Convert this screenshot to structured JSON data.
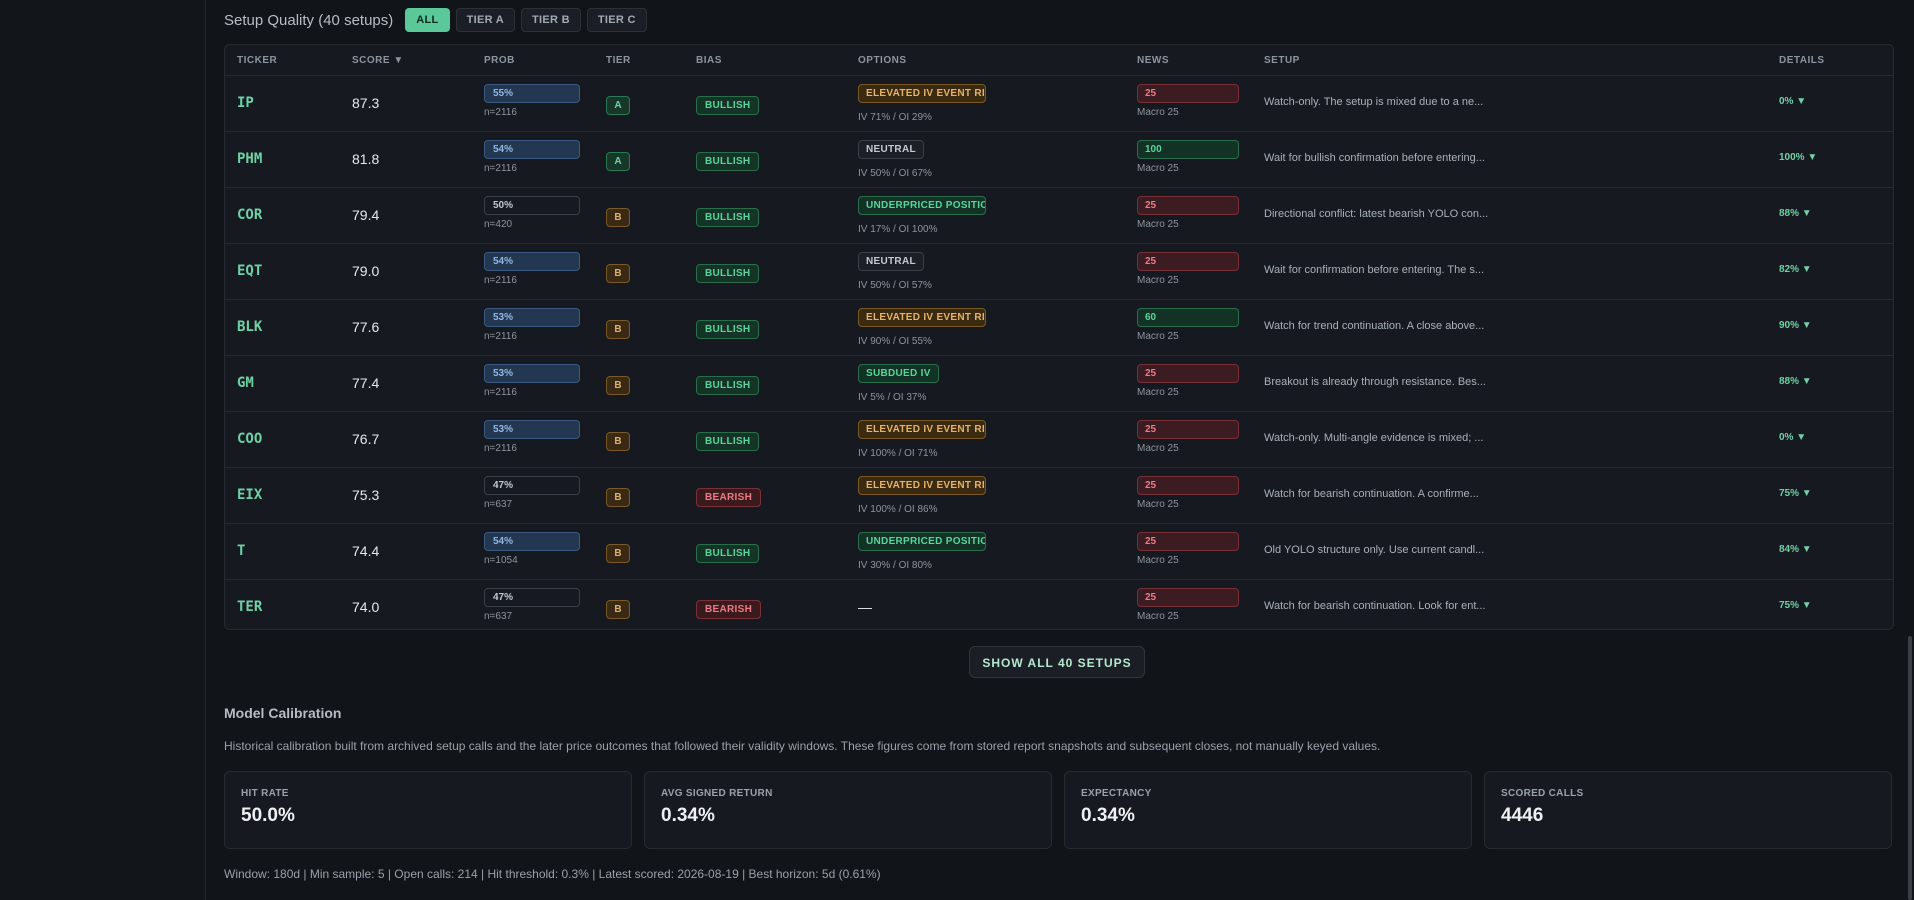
{
  "quality": {
    "title": "Setup Quality (40 setups)",
    "filters": [
      {
        "label": "ALL",
        "active": true
      },
      {
        "label": "TIER A",
        "active": false
      },
      {
        "label": "TIER B",
        "active": false
      },
      {
        "label": "TIER C",
        "active": false
      }
    ]
  },
  "table": {
    "headers": [
      "TICKER",
      "SCORE ▼",
      "PROB",
      "TIER",
      "BIAS",
      "OPTIONS",
      "NEWS",
      "SETUP",
      "DETAILS"
    ],
    "rows": [
      {
        "ticker": "IP",
        "score": "87.3",
        "prob": "55%",
        "prob_hl": true,
        "n": "n=2116",
        "tier": "A",
        "bias": "BULLISH",
        "bias_type": "bull",
        "opt_badge": "ELEVATED IV EVENT RISK",
        "opt_type": "elev",
        "opt_sub": "IV 71% / OI 29%",
        "news": "25",
        "news_type": "red",
        "news_sub": "Macro 25",
        "setup": "Watch-only. The setup is mixed due to a ne...",
        "details": "0% ▼"
      },
      {
        "ticker": "PHM",
        "score": "81.8",
        "prob": "54%",
        "prob_hl": true,
        "n": "n=2116",
        "tier": "A",
        "bias": "BULLISH",
        "bias_type": "bull",
        "opt_badge": "NEUTRAL",
        "opt_type": "neutral",
        "opt_sub": "IV 50% / OI 67%",
        "news": "100",
        "news_type": "green",
        "news_sub": "Macro 25",
        "setup": "Wait for bullish confirmation before entering...",
        "details": "100% ▼"
      },
      {
        "ticker": "COR",
        "score": "79.4",
        "prob": "50%",
        "prob_hl": false,
        "n": "n=420",
        "tier": "B",
        "bias": "BULLISH",
        "bias_type": "bull",
        "opt_badge": "UNDERPRICED POSITIONING",
        "opt_type": "under",
        "opt_sub": "IV 17% / OI 100%",
        "news": "25",
        "news_type": "red",
        "news_sub": "Macro 25",
        "setup": "Directional conflict: latest bearish YOLO con...",
        "details": "88% ▼"
      },
      {
        "ticker": "EQT",
        "score": "79.0",
        "prob": "54%",
        "prob_hl": true,
        "n": "n=2116",
        "tier": "B",
        "bias": "BULLISH",
        "bias_type": "bull",
        "opt_badge": "NEUTRAL",
        "opt_type": "neutral",
        "opt_sub": "IV 50% / OI 57%",
        "news": "25",
        "news_type": "red",
        "news_sub": "Macro 25",
        "setup": "Wait for confirmation before entering. The s...",
        "details": "82% ▼"
      },
      {
        "ticker": "BLK",
        "score": "77.6",
        "prob": "53%",
        "prob_hl": true,
        "n": "n=2116",
        "tier": "B",
        "bias": "BULLISH",
        "bias_type": "bull",
        "opt_badge": "ELEVATED IV EVENT RISK",
        "opt_type": "elev",
        "opt_sub": "IV 90% / OI 55%",
        "news": "60",
        "news_type": "green",
        "news_sub": "Macro 25",
        "setup": "Watch for trend continuation. A close above...",
        "details": "90% ▼"
      },
      {
        "ticker": "GM",
        "score": "77.4",
        "prob": "53%",
        "prob_hl": true,
        "n": "n=2116",
        "tier": "B",
        "bias": "BULLISH",
        "bias_type": "bull",
        "opt_badge": "SUBDUED IV",
        "opt_type": "subdued",
        "opt_sub": "IV 5% / OI 37%",
        "news": "25",
        "news_type": "red",
        "news_sub": "Macro 25",
        "setup": "Breakout is already through resistance. Bes...",
        "details": "88% ▼"
      },
      {
        "ticker": "COO",
        "score": "76.7",
        "prob": "53%",
        "prob_hl": true,
        "n": "n=2116",
        "tier": "B",
        "bias": "BULLISH",
        "bias_type": "bull",
        "opt_badge": "ELEVATED IV EVENT RISK",
        "opt_type": "elev",
        "opt_sub": "IV 100% / OI 71%",
        "news": "25",
        "news_type": "red",
        "news_sub": "Macro 25",
        "setup": "Watch-only. Multi-angle evidence is mixed; ...",
        "details": "0% ▼"
      },
      {
        "ticker": "EIX",
        "score": "75.3",
        "prob": "47%",
        "prob_hl": false,
        "n": "n=637",
        "tier": "B",
        "bias": "BEARISH",
        "bias_type": "bear",
        "opt_badge": "ELEVATED IV EVENT RISK",
        "opt_type": "elev",
        "opt_sub": "IV 100% / OI 86%",
        "news": "25",
        "news_type": "red",
        "news_sub": "Macro 25",
        "setup": "Watch for bearish continuation. A confirme...",
        "details": "75% ▼"
      },
      {
        "ticker": "T",
        "score": "74.4",
        "prob": "54%",
        "prob_hl": true,
        "n": "n=1054",
        "tier": "B",
        "bias": "BULLISH",
        "bias_type": "bull",
        "opt_badge": "UNDERPRICED POSITIONING",
        "opt_type": "under",
        "opt_sub": "IV 30% / OI 80%",
        "news": "25",
        "news_type": "red",
        "news_sub": "Macro 25",
        "setup": "Old YOLO structure only. Use current candl...",
        "details": "84% ▼"
      },
      {
        "ticker": "TER",
        "score": "74.0",
        "prob": "47%",
        "prob_hl": false,
        "n": "n=637",
        "tier": "B",
        "bias": "BEARISH",
        "bias_type": "bear",
        "opt_badge": "",
        "opt_type": "none",
        "opt_sub": "",
        "opt_dash": "—",
        "news": "25",
        "news_type": "red",
        "news_sub": "Macro 25",
        "setup": "Watch for bearish continuation. Look for ent...",
        "details": "75% ▼"
      }
    ]
  },
  "show_all_label": "SHOW ALL 40 SETUPS",
  "calibration": {
    "title": "Model Calibration",
    "description": "Historical calibration built from archived setup calls and the later price outcomes that followed their validity windows. These figures come from stored report snapshots and subsequent closes, not manually keyed values.",
    "cards": [
      {
        "label": "HIT RATE",
        "value": "50.0%"
      },
      {
        "label": "AVG SIGNED RETURN",
        "value": "0.34%"
      },
      {
        "label": "EXPECTANCY",
        "value": "0.34%"
      },
      {
        "label": "SCORED CALLS",
        "value": "4446"
      }
    ],
    "footer": "Window: 180d | Min sample: 5 | Open calls: 214 | Hit threshold: 0.3% | Latest scored: 2026-08-19 | Best horizon: 5d (0.61%)"
  }
}
